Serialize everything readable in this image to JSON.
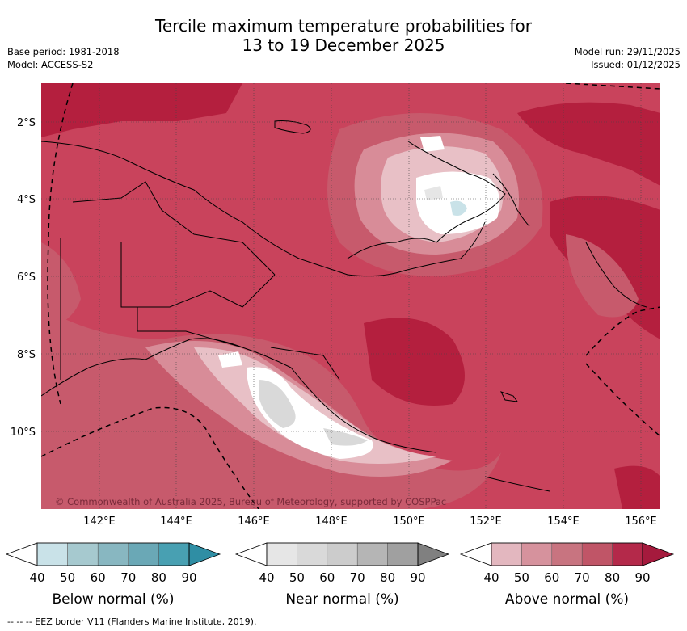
{
  "title": {
    "line1": "Tercile maximum temperature probabilities for",
    "line2": "13 to 19 December 2025"
  },
  "meta": {
    "base_period": "Base period: 1981-2018",
    "model": "Model: ACCESS-S2",
    "model_run": "Model run: 29/11/2025",
    "issued": "Issued: 01/12/2025"
  },
  "map": {
    "lat_labels": [
      "2°S",
      "4°S",
      "6°S",
      "8°S",
      "10°S"
    ],
    "lon_labels": [
      "142°E",
      "144°E",
      "146°E",
      "148°E",
      "150°E",
      "152°E",
      "154°E",
      "156°E"
    ],
    "copyright": "© Commonwealth of Australia 2025, Bureau of Meteorology, supported by COSPPac",
    "colors": {
      "background": "#c9435c",
      "dark": "#b41f3e",
      "mid": "#c75a6c",
      "light": "#d88c98",
      "pale": "#e8c0c6",
      "white": "#ffffff",
      "grey": "#d9d9d9",
      "blue": "#c9e2e8"
    }
  },
  "colorbars": [
    {
      "title": "Below normal (%)",
      "ticks": [
        "40",
        "50",
        "60",
        "70",
        "80",
        "90"
      ],
      "colors": [
        "#ffffff",
        "#c9e2e8",
        "#a6c9cf",
        "#88b7c1",
        "#6aa8b6",
        "#48a0b2",
        "#2f8ea4"
      ]
    },
    {
      "title": "Near normal (%)",
      "ticks": [
        "40",
        "50",
        "60",
        "70",
        "80",
        "90"
      ],
      "colors": [
        "#ffffff",
        "#e6e6e6",
        "#d9d9d9",
        "#cccccc",
        "#b5b5b5",
        "#a0a0a0",
        "#808080"
      ]
    },
    {
      "title": "Above normal (%)",
      "ticks": [
        "40",
        "50",
        "60",
        "70",
        "80",
        "90"
      ],
      "colors": [
        "#ffffff",
        "#e3b7bf",
        "#d6929d",
        "#c87480",
        "#c05567",
        "#b4294a",
        "#a51a3d"
      ]
    }
  ],
  "footer": {
    "eez_note": "--  --  -- EEZ border V11 (Flanders Marine Institute, 2019)."
  }
}
